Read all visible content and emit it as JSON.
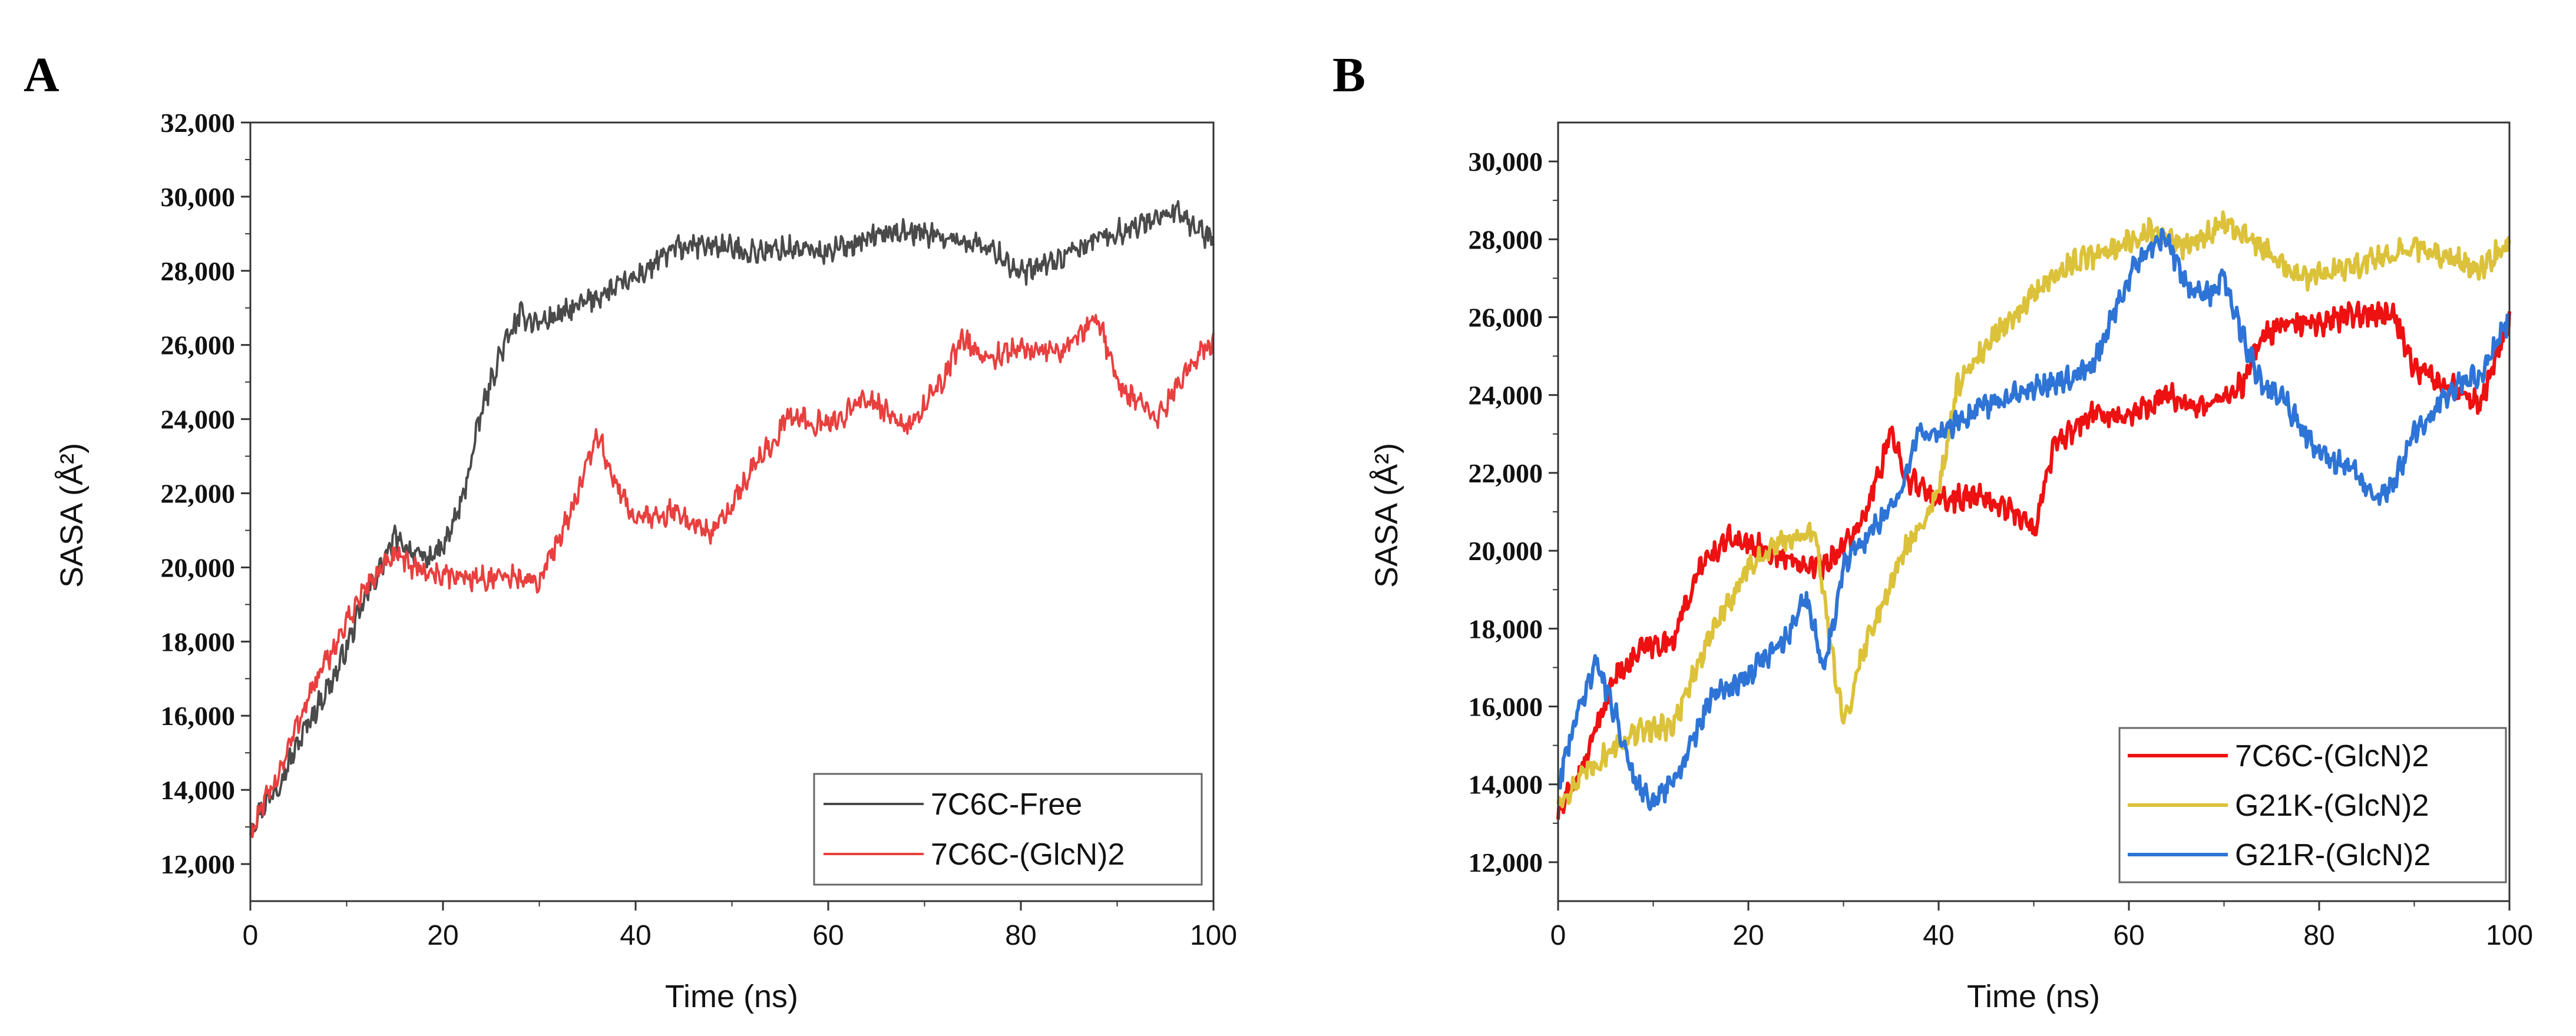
{
  "chart_data": [
    {
      "panel": "A",
      "type": "line",
      "xlabel": "Time (ns)",
      "ylabel": "SASA (Å²)",
      "xlim": [
        0,
        100
      ],
      "ylim": [
        11000,
        32000
      ],
      "xticks": [
        0,
        20,
        40,
        60,
        80,
        100
      ],
      "xtick_labels": [
        "0",
        "20",
        "40",
        "60",
        "80",
        "100"
      ],
      "yticks": [
        12000,
        14000,
        16000,
        18000,
        20000,
        22000,
        24000,
        26000,
        28000,
        30000,
        32000
      ],
      "ytick_labels": [
        "12,000",
        "14,000",
        "16,000",
        "18,000",
        "20,000",
        "22,000",
        "24,000",
        "26,000",
        "28,000",
        "30,000",
        "32,000"
      ],
      "legend_position": "bottom-right",
      "series": [
        {
          "name": "7C6C-Free",
          "color": "#4a4a4a",
          "x": [
            0,
            3,
            6,
            9,
            12,
            15,
            18,
            20,
            22,
            24,
            26,
            28,
            30,
            33,
            36,
            40,
            44,
            48,
            52,
            56,
            60,
            64,
            68,
            72,
            76,
            78,
            80,
            84,
            88,
            92,
            96,
            100
          ],
          "values": [
            13000,
            14200,
            15800,
            17200,
            19200,
            20800,
            20200,
            20500,
            21800,
            24200,
            25800,
            26800,
            26600,
            26900,
            27300,
            27800,
            28600,
            28700,
            28500,
            28600,
            28500,
            28900,
            29100,
            28900,
            28700,
            28400,
            27900,
            28300,
            28900,
            29200,
            29600,
            28800
          ]
        },
        {
          "name": "7C6C-(GlcN)2",
          "color": "#e8403f",
          "x": [
            0,
            3,
            6,
            9,
            12,
            15,
            18,
            20,
            24,
            28,
            30,
            32,
            34,
            36,
            38,
            40,
            44,
            48,
            50,
            52,
            56,
            60,
            64,
            68,
            72,
            74,
            76,
            80,
            84,
            88,
            90,
            94,
            97,
            100
          ],
          "values": [
            12800,
            14500,
            16500,
            18000,
            19500,
            20300,
            19900,
            19800,
            19700,
            19700,
            19600,
            20800,
            22000,
            23600,
            22200,
            21300,
            21500,
            20900,
            21700,
            22600,
            24100,
            23800,
            24600,
            23700,
            25100,
            26200,
            25600,
            25900,
            25800,
            26800,
            25000,
            24000,
            25200,
            26200
          ]
        }
      ]
    },
    {
      "panel": "B",
      "type": "line",
      "xlabel": "Time (ns)",
      "ylabel": "SASA (Å²)",
      "xlim": [
        0,
        100
      ],
      "ylim": [
        11000,
        31000
      ],
      "xticks": [
        0,
        20,
        40,
        60,
        80,
        100
      ],
      "xtick_labels": [
        "0",
        "20",
        "40",
        "60",
        "80",
        "100"
      ],
      "yticks": [
        12000,
        14000,
        16000,
        18000,
        20000,
        22000,
        24000,
        26000,
        28000,
        30000
      ],
      "ytick_labels": [
        "12,000",
        "14,000",
        "16,000",
        "18,000",
        "20,000",
        "22,000",
        "24,000",
        "26,000",
        "28,000",
        "30,000"
      ],
      "legend_position": "bottom-right",
      "series": [
        {
          "name": "7C6C-(GlcN)2",
          "color": "#ee1111",
          "x": [
            0,
            3,
            6,
            9,
            12,
            15,
            18,
            20,
            24,
            28,
            32,
            35,
            37,
            40,
            44,
            48,
            50,
            52,
            56,
            60,
            64,
            68,
            72,
            74,
            76,
            78,
            80,
            84,
            88,
            90,
            94,
            97,
            100
          ],
          "values": [
            13200,
            14700,
            16800,
            17500,
            17700,
            19600,
            20300,
            20200,
            19800,
            19600,
            20700,
            23000,
            21800,
            21300,
            21400,
            21000,
            20500,
            22600,
            23500,
            23500,
            24000,
            23600,
            24300,
            25500,
            25800,
            25800,
            25800,
            26100,
            26000,
            24700,
            24200,
            23800,
            26000
          ]
        },
        {
          "name": "G21K-(GlcN)2",
          "color": "#dcc23a",
          "x": [
            0,
            3,
            6,
            9,
            12,
            16,
            20,
            24,
            27,
            30,
            32,
            36,
            40,
            42,
            46,
            50,
            54,
            58,
            62,
            66,
            70,
            74,
            78,
            82,
            86,
            90,
            94,
            97,
            100
          ],
          "values": [
            13500,
            14300,
            15000,
            15400,
            15500,
            17800,
            19600,
            20300,
            20400,
            15500,
            17400,
            19800,
            21500,
            24200,
            25600,
            26600,
            27400,
            27700,
            28200,
            27800,
            28400,
            27800,
            27000,
            27200,
            27500,
            27800,
            27500,
            27200,
            28000
          ]
        },
        {
          "name": "G21R-(GlcN)2",
          "color": "#2e74d6",
          "x": [
            0,
            2,
            4,
            6,
            8,
            10,
            12,
            14,
            16,
            20,
            24,
            26,
            28,
            30,
            33,
            36,
            38,
            40,
            44,
            48,
            52,
            56,
            60,
            62,
            64,
            66,
            68,
            70,
            72,
            74,
            76,
            78,
            80,
            84,
            86,
            88,
            90,
            94,
            97,
            100
          ],
          "values": [
            14000,
            15800,
            17200,
            15800,
            14200,
            13500,
            14000,
            15000,
            16200,
            16800,
            17800,
            18800,
            17000,
            19600,
            20500,
            21500,
            23100,
            23000,
            23600,
            24000,
            24300,
            24700,
            27000,
            27800,
            28000,
            26800,
            26500,
            27000,
            25500,
            24200,
            24000,
            23200,
            22500,
            22000,
            21200,
            21800,
            23000,
            24200,
            24500,
            26000
          ]
        }
      ]
    }
  ]
}
